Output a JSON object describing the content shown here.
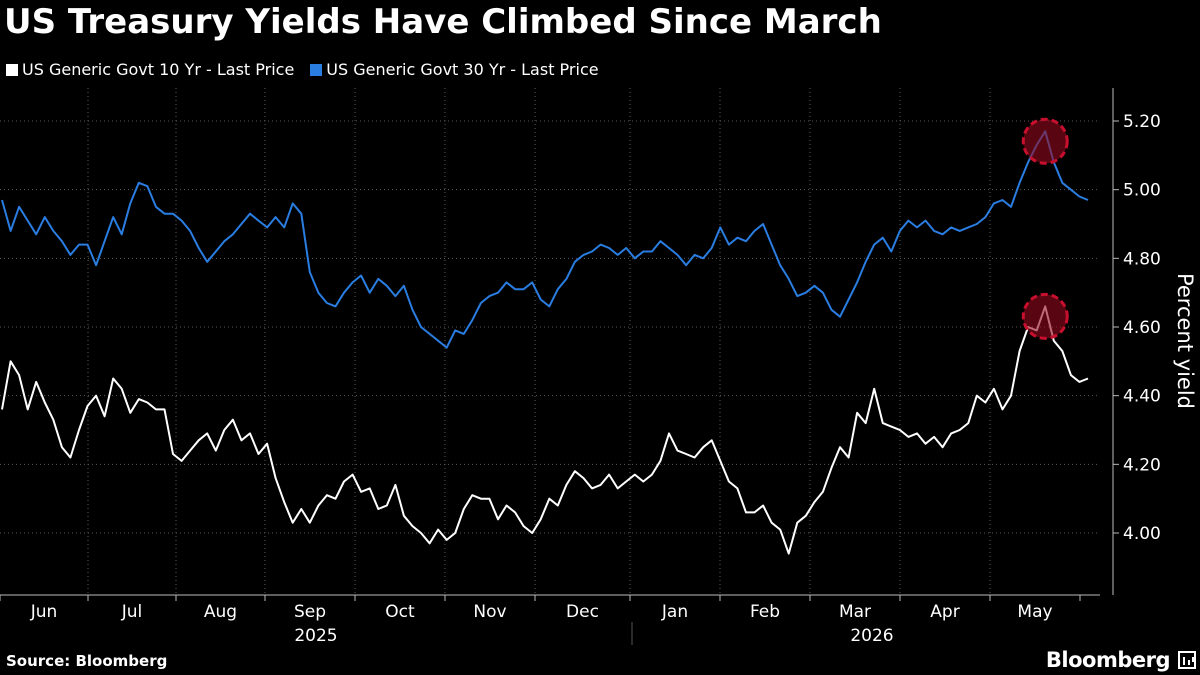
{
  "header": {
    "title": "US Treasury Yields Have Climbed Since March"
  },
  "footer": {
    "source": "Source: Bloomberg",
    "brand": "Bloomberg"
  },
  "chart_data": {
    "type": "line",
    "title": "US Treasury Yields Have Climbed Since March",
    "ylabel": "Percent yield",
    "ylim": [
      3.88,
      5.3
    ],
    "yticks": [
      4.0,
      4.2,
      4.4,
      4.6,
      4.8,
      5.0,
      5.2
    ],
    "ytick_labels": [
      "4.00",
      "4.20",
      "4.40",
      "4.60",
      "4.80",
      "5.00",
      "5.20"
    ],
    "month_labels": [
      "Jun",
      "Jul",
      "Aug",
      "Sep",
      "Oct",
      "Nov",
      "Dec",
      "Jan",
      "Feb",
      "Mar",
      "Apr",
      "May"
    ],
    "year_labels": [
      "2025",
      "2026"
    ],
    "grid": true,
    "legend_position": "top-left",
    "colors": {
      "ten_year": "#ffffff",
      "thirty_year": "#2a7de1",
      "highlight": "#c8102e"
    },
    "series": [
      {
        "name": "US Generic Govt 10 Yr - Last Price",
        "values": [
          4.36,
          4.5,
          4.46,
          4.36,
          4.44,
          4.38,
          4.33,
          4.25,
          4.22,
          4.3,
          4.37,
          4.4,
          4.34,
          4.45,
          4.42,
          4.35,
          4.39,
          4.38,
          4.36,
          4.36,
          4.23,
          4.21,
          4.24,
          4.27,
          4.29,
          4.24,
          4.3,
          4.33,
          4.27,
          4.29,
          4.23,
          4.26,
          4.16,
          4.09,
          4.03,
          4.07,
          4.03,
          4.08,
          4.11,
          4.1,
          4.15,
          4.17,
          4.12,
          4.13,
          4.07,
          4.08,
          4.14,
          4.05,
          4.02,
          4.0,
          3.97,
          4.01,
          3.98,
          4.0,
          4.07,
          4.11,
          4.1,
          4.1,
          4.04,
          4.08,
          4.06,
          4.02,
          4.0,
          4.04,
          4.1,
          4.08,
          4.14,
          4.18,
          4.16,
          4.13,
          4.14,
          4.17,
          4.13,
          4.15,
          4.17,
          4.15,
          4.17,
          4.21,
          4.29,
          4.24,
          4.23,
          4.22,
          4.25,
          4.27,
          4.21,
          4.15,
          4.13,
          4.06,
          4.06,
          4.08,
          4.03,
          4.01,
          3.94,
          4.03,
          4.05,
          4.09,
          4.12,
          4.19,
          4.25,
          4.22,
          4.35,
          4.32,
          4.42,
          4.32,
          4.31,
          4.3,
          4.28,
          4.29,
          4.26,
          4.28,
          4.25,
          4.29,
          4.3,
          4.32,
          4.4,
          4.38,
          4.42,
          4.36,
          4.4,
          4.53,
          4.6,
          4.59,
          4.66,
          4.56,
          4.53,
          4.46,
          4.44,
          4.45
        ],
        "peak_value": 4.66
      },
      {
        "name": "US Generic Govt 30 Yr - Last Price",
        "values": [
          4.97,
          4.88,
          4.95,
          4.91,
          4.87,
          4.92,
          4.88,
          4.85,
          4.81,
          4.84,
          4.84,
          4.78,
          4.85,
          4.92,
          4.87,
          4.96,
          5.02,
          5.01,
          4.95,
          4.93,
          4.93,
          4.91,
          4.88,
          4.83,
          4.79,
          4.82,
          4.85,
          4.87,
          4.9,
          4.93,
          4.91,
          4.89,
          4.92,
          4.89,
          4.96,
          4.93,
          4.76,
          4.7,
          4.67,
          4.66,
          4.7,
          4.73,
          4.75,
          4.7,
          4.74,
          4.72,
          4.69,
          4.72,
          4.65,
          4.6,
          4.58,
          4.56,
          4.54,
          4.59,
          4.58,
          4.62,
          4.67,
          4.69,
          4.7,
          4.73,
          4.71,
          4.71,
          4.73,
          4.68,
          4.66,
          4.71,
          4.74,
          4.79,
          4.81,
          4.82,
          4.84,
          4.83,
          4.81,
          4.83,
          4.8,
          4.82,
          4.82,
          4.85,
          4.83,
          4.81,
          4.78,
          4.81,
          4.8,
          4.83,
          4.89,
          4.84,
          4.86,
          4.85,
          4.88,
          4.9,
          4.84,
          4.78,
          4.74,
          4.69,
          4.7,
          4.72,
          4.7,
          4.65,
          4.63,
          4.68,
          4.73,
          4.79,
          4.84,
          4.86,
          4.82,
          4.88,
          4.91,
          4.89,
          4.91,
          4.88,
          4.87,
          4.89,
          4.88,
          4.89,
          4.9,
          4.92,
          4.96,
          4.97,
          4.95,
          5.02,
          5.08,
          5.13,
          5.17,
          5.08,
          5.02,
          5.0,
          4.98,
          4.97
        ],
        "peak_value": 5.17
      }
    ]
  }
}
